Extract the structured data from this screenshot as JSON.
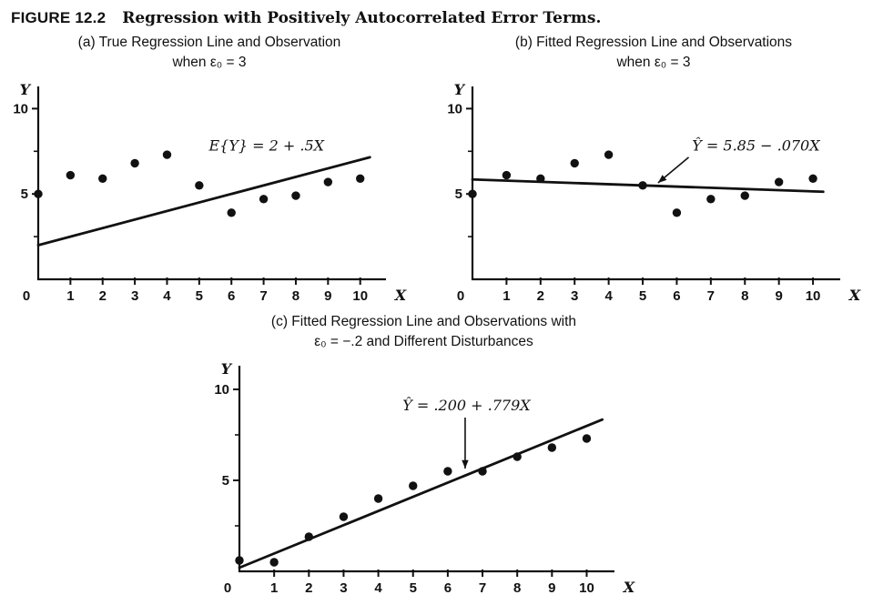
{
  "figure": {
    "label": "FIGURE 12.2",
    "title": "Regression with Positively Autocorrelated Error Terms."
  },
  "chart_data": [
    {
      "type": "scatter",
      "panel": "a",
      "title_lines": [
        "(a) True Regression Line and Observation",
        "when ε₀ = 3"
      ],
      "x": [
        0,
        1,
        2,
        3,
        4,
        5,
        6,
        7,
        8,
        9,
        10
      ],
      "y": [
        5.0,
        6.1,
        5.9,
        6.8,
        7.3,
        5.5,
        3.9,
        4.7,
        4.9,
        5.7,
        5.9
      ],
      "line": {
        "equation": "E{Y} = 2 + .5X",
        "intercept": 2,
        "slope": 0.5,
        "x_start": 0,
        "x_end": 10.3
      },
      "annotation": {
        "text": "E{Y} = 2 + .5X",
        "x": 5.3,
        "y": 7.55,
        "arrow": null
      },
      "xlabel": "X",
      "ylabel": "Y",
      "xlim": [
        0,
        10.8
      ],
      "ylim": [
        0,
        11.3
      ],
      "xticks": [
        1,
        2,
        3,
        4,
        5,
        6,
        7,
        8,
        9,
        10
      ],
      "yticks": [
        5,
        10
      ],
      "yticks_minor": [
        2.5,
        7.5
      ],
      "grid": false,
      "marker_color": "#111111"
    },
    {
      "type": "scatter",
      "panel": "b",
      "title_lines": [
        "(b) Fitted Regression Line and Observations",
        "when ε₀ = 3"
      ],
      "x": [
        0,
        1,
        2,
        3,
        4,
        5,
        6,
        7,
        8,
        9,
        10
      ],
      "y": [
        5.0,
        6.1,
        5.9,
        6.8,
        7.3,
        5.5,
        3.9,
        4.7,
        4.9,
        5.7,
        5.9
      ],
      "line": {
        "equation": "Ŷ = 5.85 − .070X",
        "intercept": 5.85,
        "slope": -0.07,
        "x_start": 0,
        "x_end": 10.3
      },
      "annotation": {
        "text": "Ŷ = 5.85 − .070X",
        "x": 6.45,
        "y": 7.55,
        "arrow": {
          "x1": 6.35,
          "y1": 7.15,
          "x2": 5.45,
          "y2": 5.65
        }
      },
      "xlabel": "X",
      "ylabel": "Y",
      "xlim": [
        0,
        10.8
      ],
      "ylim": [
        0,
        11.3
      ],
      "xticks": [
        1,
        2,
        3,
        4,
        5,
        6,
        7,
        8,
        9,
        10
      ],
      "yticks": [
        5,
        10
      ],
      "yticks_minor": [
        2.5,
        7.5
      ],
      "grid": false,
      "marker_color": "#111111"
    },
    {
      "type": "scatter",
      "panel": "c",
      "title_lines": [
        "(c) Fitted Regression Line and Observations with",
        "ε₀ = −.2 and Different Disturbances"
      ],
      "x": [
        0,
        1,
        2,
        3,
        4,
        5,
        6,
        7,
        8,
        9,
        10
      ],
      "y": [
        0.6,
        0.5,
        1.9,
        3.0,
        4.0,
        4.7,
        5.5,
        5.5,
        6.3,
        6.8,
        7.3
      ],
      "line": {
        "equation": "Ŷ = .200 + .779X",
        "intercept": 0.2,
        "slope": 0.779,
        "x_start": 0,
        "x_end": 10.45
      },
      "annotation": {
        "text": "Ŷ = .200 + .779X",
        "x": 4.7,
        "y": 8.85,
        "arrow": {
          "x1": 6.5,
          "y1": 8.45,
          "x2": 6.5,
          "y2": 5.65
        }
      },
      "xlabel": "X",
      "ylabel": "Y",
      "xlim": [
        0,
        10.8
      ],
      "ylim": [
        0,
        11.3
      ],
      "xticks": [
        1,
        2,
        3,
        4,
        5,
        6,
        7,
        8,
        9,
        10
      ],
      "yticks": [
        5,
        10
      ],
      "yticks_minor": [
        2.5,
        7.5
      ],
      "grid": false,
      "marker_color": "#111111"
    }
  ]
}
